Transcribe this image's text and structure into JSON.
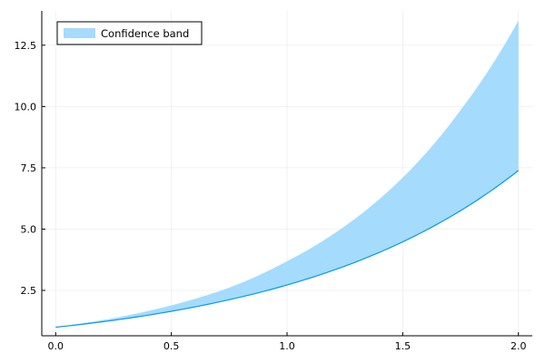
{
  "chart_data": {
    "type": "area",
    "title": "",
    "xlabel": "",
    "ylabel": "",
    "xlim": [
      -0.06,
      2.06
    ],
    "ylim": [
      0.65,
      13.9
    ],
    "x_ticks": [
      0.0,
      0.5,
      1.0,
      1.5,
      2.0
    ],
    "x_tick_labels": [
      "0.0",
      "0.5",
      "1.0",
      "1.5",
      "2.0"
    ],
    "y_ticks": [
      2.5,
      5.0,
      7.5,
      10.0,
      12.5
    ],
    "y_tick_labels": [
      "2.5",
      "5.0",
      "7.5",
      "10.0",
      "12.5"
    ],
    "grid": true,
    "legend_position": "top-left",
    "series": [
      {
        "name": "Confidence band",
        "color": "#009af9",
        "fill_color": "#a5dbfd",
        "x": [
          0.0,
          0.25,
          0.5,
          0.75,
          1.0,
          1.25,
          1.5,
          1.75,
          2.0
        ],
        "lower": [
          1.0,
          1.28,
          1.65,
          2.12,
          2.72,
          3.49,
          4.48,
          5.75,
          7.39
        ],
        "upper": [
          1.0,
          1.37,
          1.89,
          2.61,
          3.69,
          5.12,
          7.1,
          9.85,
          13.5
        ]
      }
    ]
  }
}
